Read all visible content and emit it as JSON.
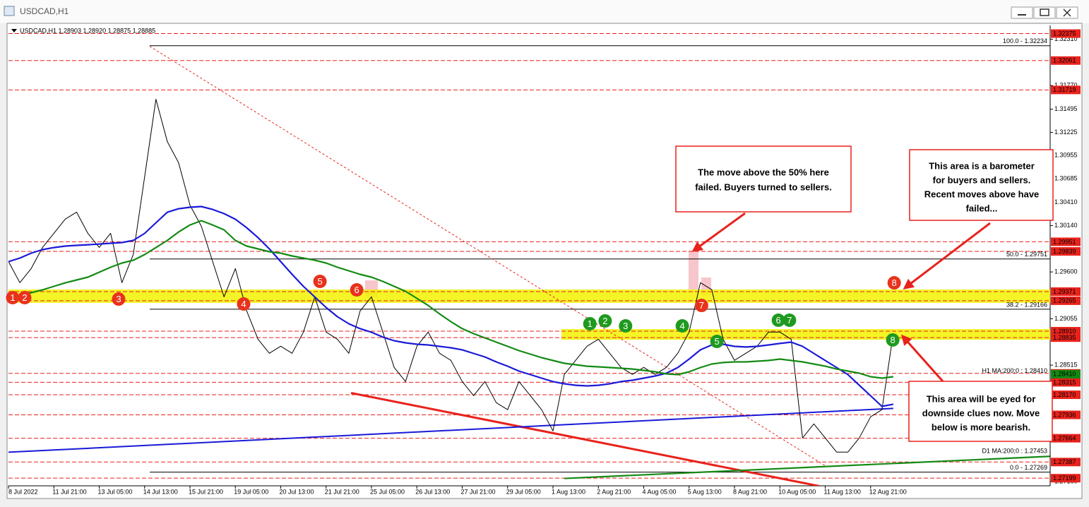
{
  "chart_data": {
    "type": "line",
    "window_title": "USDCAD,H1",
    "info": "USDCAD,H1  1.28903 1.28920 1.28875 1.28885",
    "categories": [
      "8 Jul 2022",
      null,
      null,
      null,
      "11 Jul 21:00",
      null,
      null,
      null,
      "13 Jul 05:00",
      null,
      null,
      null,
      "14 Jul 13:00",
      null,
      null,
      null,
      "15 Jul 21:00",
      null,
      null,
      null,
      "19 Jul 05:00",
      null,
      null,
      null,
      "20 Jul 13:00",
      null,
      null,
      null,
      "21 Jul 21:00",
      null,
      null,
      null,
      "25 Jul 05:00",
      null,
      null,
      null,
      "26 Jul 13:00",
      null,
      null,
      null,
      "27 Jul 21:00",
      null,
      null,
      null,
      "29 Jul 05:00",
      null,
      null,
      null,
      "1 Aug 13:00",
      null,
      null,
      null,
      "2 Aug 21:00",
      null,
      null,
      null,
      "4 Aug 05:00",
      null,
      null,
      null,
      "5 Aug 13:00",
      null,
      null,
      null,
      "8 Aug 21:00",
      null,
      null,
      null,
      "10 Aug 05:00",
      null,
      null,
      null,
      "11 Aug 13:00",
      null,
      null,
      null,
      "12 Aug 21:00",
      null,
      null
    ],
    "series": [
      {
        "color": "#000000",
        "width": 1,
        "values": [
          1.29721,
          1.29475,
          1.29639,
          1.29885,
          1.3005,
          1.30214,
          1.30296,
          1.3005,
          1.29885,
          1.3005,
          1.29475,
          1.29803,
          1.30707,
          1.31611,
          1.31118,
          1.30871,
          1.30378,
          1.30132,
          1.29721,
          1.2931,
          1.29639,
          1.29146,
          1.28817,
          1.28653,
          1.28735,
          1.28653,
          1.289,
          1.2931,
          1.289,
          1.28817,
          1.28653,
          1.29146,
          1.2931,
          1.289,
          1.28489,
          1.28324,
          1.28735,
          1.289,
          1.28653,
          1.28571,
          1.28324,
          1.2816,
          1.28324,
          1.28078,
          1.27996,
          1.28324,
          1.2816,
          1.27996,
          1.27749,
          1.28407,
          1.28571,
          1.28735,
          1.28817,
          1.28653,
          1.28489,
          1.28407,
          1.28489,
          1.28407,
          1.28489,
          1.28653,
          1.289,
          1.29475,
          1.29393,
          1.28817,
          1.28571,
          1.28653,
          1.28735,
          1.289,
          1.289,
          1.28817,
          1.27667,
          1.27831,
          1.27667,
          1.27503,
          1.27503,
          1.27667,
          1.27914,
          1.27996,
          1.28885
        ]
      },
      {
        "color": "#1a1ad8",
        "width": 2.2,
        "values": [
          1.2972,
          1.29761,
          1.29819,
          1.2986,
          1.29884,
          1.29901,
          1.29909,
          1.29917,
          1.29925,
          1.29934,
          1.29942,
          1.29967,
          1.30049,
          1.30172,
          1.30295,
          1.30336,
          1.30353,
          1.30361,
          1.30328,
          1.30279,
          1.30213,
          1.30115,
          1.29999,
          1.29868,
          1.2972,
          1.29572,
          1.29432,
          1.29309,
          1.29186,
          1.29079,
          1.28997,
          1.2894,
          1.28898,
          1.28841,
          1.28799,
          1.28775,
          1.28758,
          1.2875,
          1.28734,
          1.28717,
          1.28693,
          1.28651,
          1.2861,
          1.28553,
          1.28503,
          1.28446,
          1.28405,
          1.28364,
          1.28323,
          1.28298,
          1.28281,
          1.28273,
          1.28281,
          1.28298,
          1.28323,
          1.28339,
          1.28364,
          1.28388,
          1.28421,
          1.28487,
          1.28586,
          1.28693,
          1.2875,
          1.28758,
          1.28734,
          1.28726,
          1.28734,
          1.2875,
          1.28767,
          1.28783,
          1.28734,
          1.28651,
          1.28569,
          1.28487,
          1.28405,
          1.28281,
          1.28158,
          1.28035,
          1.2806
        ]
      },
      {
        "color": "#138a13",
        "width": 2.2,
        "label": "H1 MA:200;0 : 1.28410",
        "axis_tag": {
          "value": 1.2841,
          "label": "1.28410"
        },
        "values": [
          1.29309,
          1.29325,
          1.29358,
          1.29391,
          1.29432,
          1.29473,
          1.29506,
          1.29539,
          1.29597,
          1.29654,
          1.29704,
          1.29736,
          1.29802,
          1.29884,
          1.29967,
          1.30065,
          1.30147,
          1.30197,
          1.30147,
          1.3009,
          1.29967,
          1.29901,
          1.29868,
          1.29835,
          1.29819,
          1.29786,
          1.29761,
          1.29736,
          1.29704,
          1.29654,
          1.29613,
          1.29572,
          1.29539,
          1.2949,
          1.29432,
          1.29375,
          1.29293,
          1.2921,
          1.29112,
          1.29021,
          1.2894,
          1.28882,
          1.28832,
          1.28783,
          1.28734,
          1.28684,
          1.28643,
          1.28602,
          1.28569,
          1.28536,
          1.2852,
          1.28503,
          1.28495,
          1.28487,
          1.28479,
          1.2847,
          1.28454,
          1.28438,
          1.28413,
          1.28405,
          1.28438,
          1.28487,
          1.28528,
          1.28545,
          1.28553,
          1.28553,
          1.28561,
          1.28569,
          1.28586,
          1.28569,
          1.28553,
          1.28528,
          1.28503,
          1.2847,
          1.28446,
          1.28421,
          1.2838,
          1.28364,
          1.2838
        ]
      }
    ],
    "ylim": [
      1.2711,
      1.3247
    ],
    "yticks": [
      {
        "value": 1.3231,
        "label": "1.32310"
      },
      {
        "value": 1.3177,
        "label": "1.31770"
      },
      1.31495,
      1.31225,
      1.30955,
      1.30685,
      {
        "value": 1.3041,
        "label": "1.30410"
      },
      {
        "value": 1.3014,
        "label": "1.30140"
      },
      {
        "value": 1.296,
        "label": "1.29600"
      },
      1.29055,
      1.28515,
      {
        "value": 1.2716,
        "label": "1.27160"
      }
    ],
    "grid": false,
    "level_color": "#e8221c",
    "levels": [
      1.32375,
      1.32061,
      1.31719,
      1.29951,
      1.29839,
      1.29371,
      1.29265,
      {
        "value": 1.2891,
        "label": "1.28910"
      },
      1.28835,
      1.28419,
      1.28315,
      {
        "value": 1.2817,
        "label": "1.28170"
      },
      1.27936,
      1.27664,
      1.27387,
      1.27199
    ],
    "fib_levels": [
      {
        "value": 1.32234,
        "label": "100.0 - 1.32234"
      },
      {
        "value": 1.29751,
        "label": "50.0 - 1.29751"
      },
      {
        "value": 1.29166,
        "label": "38.2 - 1.29166"
      },
      {
        "value": 1.27269,
        "label": "0.0 - 1.27269"
      }
    ],
    "zones": [
      {
        "from": 1.29265,
        "to": 1.29371,
        "start": 0
      },
      {
        "from": 1.28835,
        "to": 1.2891,
        "start": 48.75
      }
    ],
    "trendlines": [
      {
        "color": "#e8221c",
        "width": 3,
        "x": [
          30.2,
          71.5
        ],
        "y": [
          1.28191,
          1.27106
        ]
      },
      {
        "color": "#e8221c",
        "width": 1,
        "dash": true,
        "x": [
          12.45,
          72.1
        ],
        "y": [
          1.32227,
          1.27336
        ]
      },
      {
        "color": "#1a1ad8",
        "width": 2,
        "x": [
          0,
          78
        ],
        "y": [
          1.27501,
          1.28011
        ]
      },
      {
        "color": "#138a13",
        "width": 2.2,
        "x": [
          49,
          91.8
        ],
        "y": [
          1.27196,
          1.27453
        ],
        "label": "D1 MA:200;0 : 1.27453"
      }
    ],
    "markers": [
      {
        "label": "1",
        "color": "#e8321c",
        "x": 0.37,
        "y": 1.29301
      },
      {
        "label": "2",
        "color": "#e8321c",
        "x": 1.43,
        "y": 1.29301
      },
      {
        "label": "3",
        "color": "#e8321c",
        "x": 9.71,
        "y": 1.29284
      },
      {
        "label": "4",
        "color": "#e8321c",
        "x": 20.73,
        "y": 1.29227
      },
      {
        "label": "5",
        "color": "#e8321c",
        "x": 27.46,
        "y": 1.2949
      },
      {
        "label": "6",
        "color": "#e8321c",
        "x": 30.7,
        "y": 1.29391
      },
      {
        "label": "7",
        "color": "#e8321c",
        "x": 61.1,
        "y": 1.2921
      },
      {
        "label": "8",
        "color": "#e8321c",
        "x": 78.08,
        "y": 1.29473
      },
      {
        "label": "1",
        "color": "#1f9a1f",
        "x": 51.25,
        "y": 1.28997
      },
      {
        "label": "2",
        "color": "#1f9a1f",
        "x": 52.6,
        "y": 1.2903
      },
      {
        "label": "3",
        "color": "#1f9a1f",
        "x": 54.4,
        "y": 1.28972
      },
      {
        "label": "4",
        "color": "#1f9a1f",
        "x": 59.4,
        "y": 1.28972
      },
      {
        "label": "5",
        "color": "#1f9a1f",
        "x": 62.45,
        "y": 1.28791
      },
      {
        "label": "6",
        "color": "#1f9a1f",
        "x": 67.87,
        "y": 1.29038
      },
      {
        "label": "7",
        "color": "#1f9a1f",
        "x": 68.85,
        "y": 1.29038
      },
      {
        "label": "8",
        "color": "#1f9a1f",
        "x": 77.95,
        "y": 1.28808
      }
    ],
    "callouts": [
      {
        "lines": [
          "The move above the 50% here",
          "failed.  Buyers turned to sellers."
        ]
      },
      {
        "lines": [
          "This area is a barometer",
          "for buyers and sellers.",
          "Recent moves above have",
          "failed..."
        ]
      },
      {
        "lines": [
          "This area will be eyed for",
          "downside clues now. Move",
          "below is more bearish."
        ]
      }
    ]
  }
}
